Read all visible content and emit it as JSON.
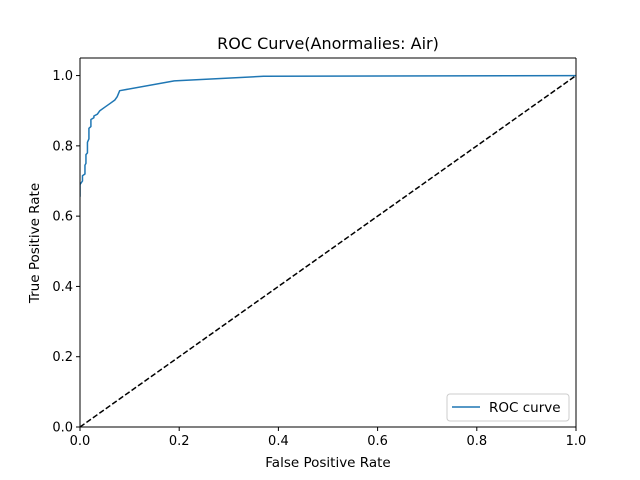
{
  "chart_data": {
    "type": "line",
    "title": "ROC Curve(Anormalies: Air)",
    "xlabel": "False Positive Rate",
    "ylabel": "True Positive Rate",
    "xlim": [
      0.0,
      1.0
    ],
    "ylim": [
      0.0,
      1.05
    ],
    "xticks": [
      "0.0",
      "0.2",
      "0.4",
      "0.6",
      "0.8",
      "1.0"
    ],
    "xtick_values": [
      0.0,
      0.2,
      0.4,
      0.6,
      0.8,
      1.0
    ],
    "yticks": [
      "0.0",
      "0.2",
      "0.4",
      "0.6",
      "0.8",
      "1.0"
    ],
    "ytick_values": [
      0.0,
      0.2,
      0.4,
      0.6,
      0.8,
      1.0
    ],
    "grid": false,
    "legend_position": "lower-right",
    "series": [
      {
        "name": "ROC curve",
        "color": "#1f77b4",
        "style": "solid",
        "x": [
          0.0,
          0.0,
          0.005,
          0.005,
          0.01,
          0.01,
          0.012,
          0.012,
          0.015,
          0.015,
          0.018,
          0.018,
          0.022,
          0.022,
          0.028,
          0.028,
          0.035,
          0.04,
          0.05,
          0.06,
          0.07,
          0.075,
          0.08,
          0.19,
          0.37,
          1.0
        ],
        "y": [
          0.655,
          0.69,
          0.7,
          0.715,
          0.72,
          0.745,
          0.75,
          0.775,
          0.78,
          0.81,
          0.82,
          0.85,
          0.855,
          0.875,
          0.88,
          0.885,
          0.89,
          0.9,
          0.91,
          0.92,
          0.93,
          0.94,
          0.957,
          0.985,
          0.998,
          1.0
        ]
      },
      {
        "color": "#000000",
        "style": "dashed",
        "x": [
          0.0,
          1.0
        ],
        "y": [
          0.0,
          1.0
        ]
      }
    ]
  }
}
